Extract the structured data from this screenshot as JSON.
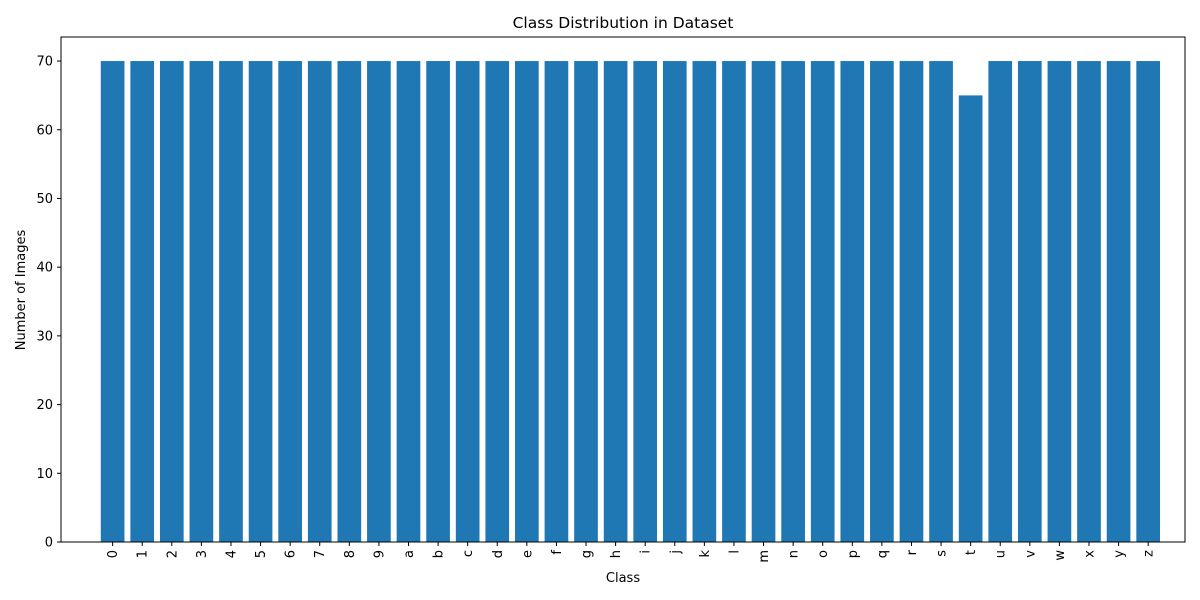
{
  "chart_data": {
    "type": "bar",
    "title": "Class Distribution in Dataset",
    "xlabel": "Class",
    "ylabel": "Number of Images",
    "categories": [
      "0",
      "1",
      "2",
      "3",
      "4",
      "5",
      "6",
      "7",
      "8",
      "9",
      "a",
      "b",
      "c",
      "d",
      "e",
      "f",
      "g",
      "h",
      "i",
      "j",
      "k",
      "l",
      "m",
      "n",
      "o",
      "p",
      "q",
      "r",
      "s",
      "t",
      "u",
      "v",
      "w",
      "x",
      "y",
      "z"
    ],
    "values": [
      70,
      70,
      70,
      70,
      70,
      70,
      70,
      70,
      70,
      70,
      70,
      70,
      70,
      70,
      70,
      70,
      70,
      70,
      70,
      70,
      70,
      70,
      70,
      70,
      70,
      70,
      70,
      70,
      70,
      65,
      70,
      70,
      70,
      70,
      70,
      70
    ],
    "yticks": [
      0,
      10,
      20,
      30,
      40,
      50,
      60,
      70
    ],
    "ylim": [
      0,
      73.5
    ],
    "grid": false,
    "bar_color": "#1f77b4",
    "xtick_rotation": "vertical"
  }
}
